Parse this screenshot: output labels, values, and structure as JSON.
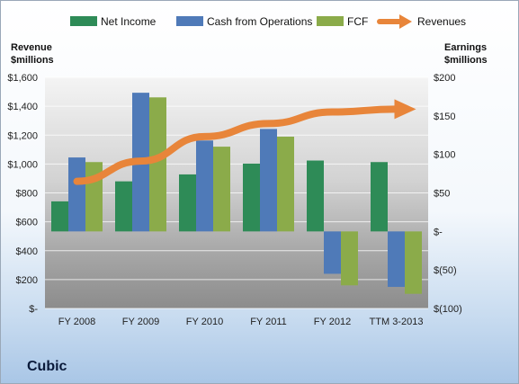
{
  "chart_data": {
    "type": "bar",
    "company": "Cubic",
    "categories": [
      "FY 2008",
      "FY 2009",
      "FY 2010",
      "FY 2011",
      "FY 2012",
      "TTM 3-2013"
    ],
    "legend": [
      "Net Income",
      "Cash from Operations",
      "FCF",
      "Revenues"
    ],
    "left_axis": {
      "title_line1": "Revenue",
      "title_line2": "$millions",
      "ylim": [
        0,
        1600
      ],
      "ticks": [
        {
          "value": 0,
          "label": "$-"
        },
        {
          "value": 200,
          "label": "$200"
        },
        {
          "value": 400,
          "label": "$400"
        },
        {
          "value": 600,
          "label": "$600"
        },
        {
          "value": 800,
          "label": "$800"
        },
        {
          "value": 1000,
          "label": "$1,000"
        },
        {
          "value": 1200,
          "label": "$1,200"
        },
        {
          "value": 1400,
          "label": "$1,400"
        },
        {
          "value": 1600,
          "label": "$1,600"
        }
      ]
    },
    "right_axis": {
      "title_line1": "Earnings",
      "title_line2": "$millions",
      "ylim": [
        -100,
        200
      ],
      "ticks": [
        {
          "value": -100,
          "label": "$(100)"
        },
        {
          "value": -50,
          "label": "$(50)"
        },
        {
          "value": 0,
          "label": "$-"
        },
        {
          "value": 50,
          "label": "$50"
        },
        {
          "value": 100,
          "label": "$100"
        },
        {
          "value": 150,
          "label": "$150"
        },
        {
          "value": 200,
          "label": "$200"
        }
      ]
    },
    "series": [
      {
        "name": "Net Income",
        "axis": "right",
        "color": "#2e8b57",
        "values": [
          39,
          65,
          74,
          88,
          92,
          90
        ]
      },
      {
        "name": "Cash from Operations",
        "axis": "right",
        "color": "#4f7ab8",
        "values": [
          96,
          180,
          118,
          133,
          -55,
          -72
        ]
      },
      {
        "name": "FCF",
        "axis": "right",
        "color": "#8bab4a",
        "values": [
          90,
          174,
          110,
          123,
          -70,
          -81
        ]
      },
      {
        "name": "Revenues",
        "axis": "left",
        "color": "#e8853a",
        "values": [
          880,
          1020,
          1190,
          1280,
          1360,
          1380
        ]
      }
    ]
  }
}
